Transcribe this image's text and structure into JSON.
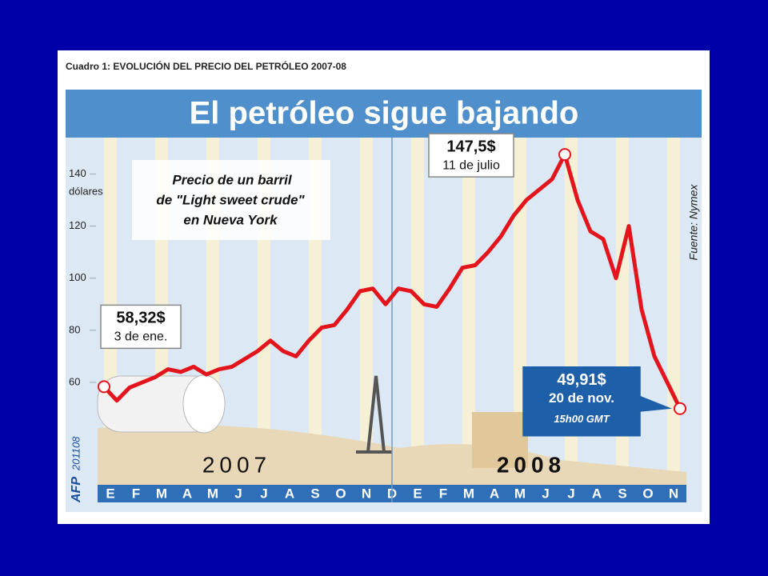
{
  "chart_data": {
    "type": "line",
    "header": "Cuadro 1: EVOLUCIÓN DEL PRECIO DEL PETRÓLEO 2007-08",
    "title": "El petróleo sigue bajando",
    "subtitle": [
      "Precio de un barril",
      "de \"Light sweet crude\"",
      "en Nueva York"
    ],
    "y_unit": "dólares",
    "source": "Fuente: Nymex",
    "credit": "AFP",
    "credit_date": "201108",
    "years": [
      "2007",
      "2008"
    ],
    "categories": [
      "E",
      null,
      "F",
      null,
      "M",
      null,
      "A",
      null,
      "M",
      null,
      "J",
      null,
      "J",
      null,
      "A",
      null,
      "S",
      null,
      "O",
      null,
      "N",
      null,
      "D",
      null,
      "E",
      null,
      "F",
      null,
      "M",
      null,
      "A",
      null,
      "M",
      null,
      "J",
      null,
      "J",
      null,
      "A",
      null,
      "S",
      null,
      "O",
      null,
      "N",
      null
    ],
    "values": [
      58.32,
      53,
      58,
      60,
      62,
      65,
      64,
      66,
      63,
      65,
      66,
      69,
      72,
      76,
      72,
      70,
      76,
      81,
      82,
      88,
      95,
      96,
      90,
      96,
      95,
      90,
      89,
      96,
      104,
      105,
      110,
      116,
      124,
      130,
      134,
      138,
      147.5,
      130,
      118,
      115,
      100,
      120,
      88,
      70,
      60,
      49.91
    ],
    "value_labels": [
      "58,32$",
      null,
      null,
      null,
      null,
      null,
      null,
      null,
      null,
      null,
      null,
      null,
      null,
      null,
      null,
      null,
      null,
      null,
      null,
      null,
      null,
      null,
      null,
      null,
      null,
      null,
      null,
      null,
      null,
      null,
      null,
      null,
      null,
      null,
      null,
      null,
      "147,5$",
      null,
      null,
      null,
      null,
      null,
      null,
      null,
      null,
      "49,91$"
    ],
    "value_notes": [
      "3 de ene.",
      null,
      null,
      null,
      null,
      null,
      null,
      null,
      null,
      null,
      null,
      null,
      null,
      null,
      null,
      null,
      null,
      null,
      null,
      null,
      null,
      null,
      null,
      null,
      null,
      null,
      null,
      null,
      null,
      null,
      null,
      null,
      null,
      null,
      null,
      null,
      "11 de julio",
      null,
      null,
      null,
      null,
      null,
      null,
      null,
      null,
      "20 de nov."
    ],
    "time_note": "15h00 GMT",
    "color": "#e3141c",
    "ylim": [
      40,
      150
    ],
    "yticks": [
      60,
      80,
      100,
      120,
      140
    ]
  }
}
